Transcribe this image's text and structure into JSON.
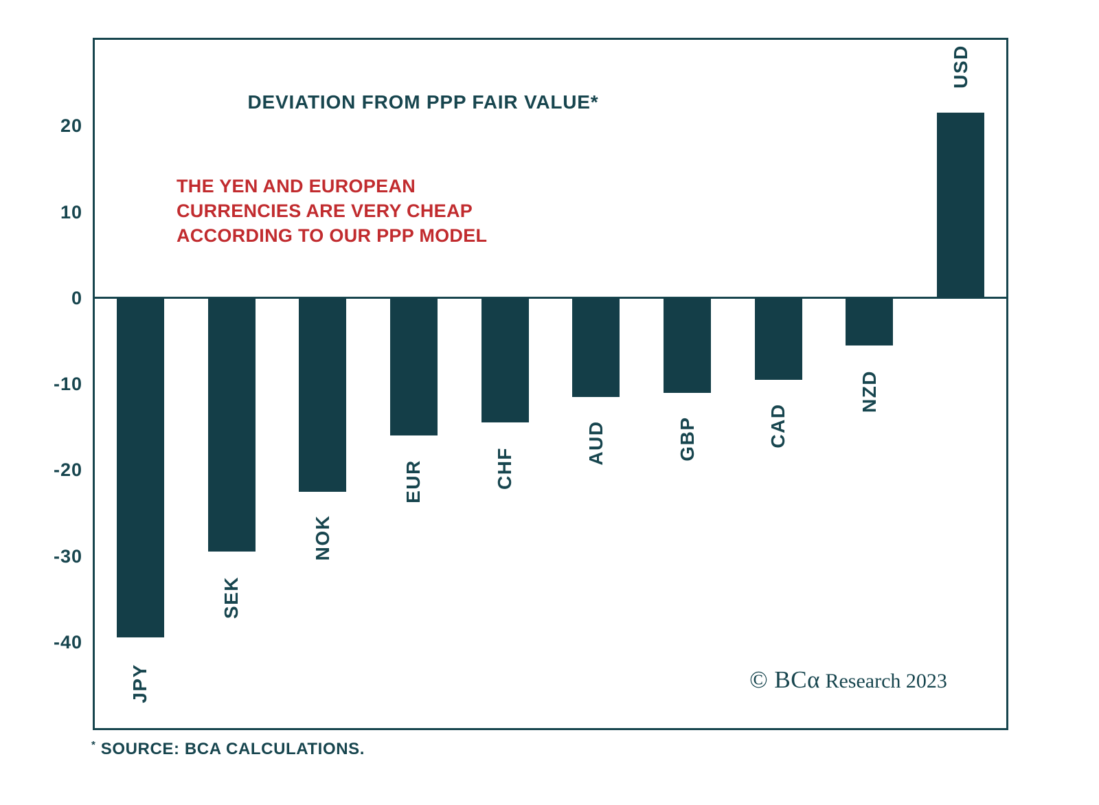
{
  "chart_data": {
    "type": "bar",
    "title": "DEVIATION FROM PPP FAIR VALUE*",
    "annotation": {
      "lines": [
        "THE YEN AND EUROPEAN",
        "CURRENCIES ARE VERY CHEAP",
        "ACCORDING TO OUR PPP MODEL"
      ],
      "color": "#c12b2e"
    },
    "categories": [
      "JPY",
      "SEK",
      "NOK",
      "EUR",
      "CHF",
      "AUD",
      "GBP",
      "CAD",
      "NZD",
      "USD"
    ],
    "values": [
      -39.5,
      -29.5,
      -22.5,
      -16,
      -14.5,
      -11.5,
      -11,
      -9.5,
      -5.5,
      21.5
    ],
    "xlabel": "",
    "ylabel": "",
    "y_ticks": [
      20,
      10,
      0,
      -10,
      -20,
      -30,
      -40
    ],
    "ylim": [
      -50,
      30
    ],
    "grid": false,
    "legend": null,
    "bar_color": "#143e48",
    "accent_color": "#17454e"
  },
  "footer": {
    "copyright_logo": "© BCα",
    "copyright_rest": " Research 2023",
    "source_star": "*",
    "source_text": " SOURCE: BCA CALCULATIONS."
  }
}
